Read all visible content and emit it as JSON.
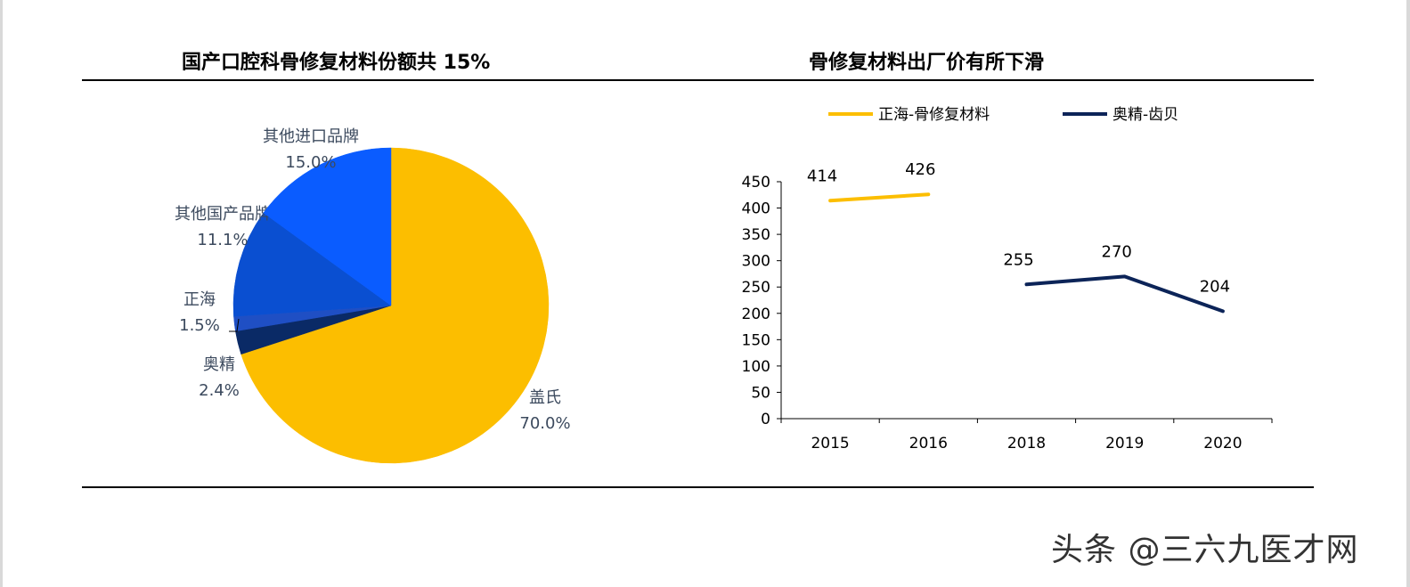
{
  "titles": {
    "left": "国产口腔科骨修复材料份额共 15%",
    "right": "骨修复材料出厂价有所下滑"
  },
  "watermark": "头条 @三六九医才网",
  "chart_data": [
    {
      "type": "pie",
      "title": "国产口腔科骨修复材料份额共 15%",
      "start_angle_deg": 0,
      "direction": "clockwise",
      "slices": [
        {
          "name": "盖氏",
          "value": 70.0,
          "label": "70.0%",
          "color": "#fcbe00"
        },
        {
          "name": "奥精",
          "value": 2.4,
          "label": "2.4%",
          "color": "#0a2a66"
        },
        {
          "name": "正海",
          "value": 1.5,
          "label": "1.5%",
          "color": "#1f4fc4"
        },
        {
          "name": "其他国产品牌",
          "value": 11.1,
          "label": "11.1%",
          "color": "#0a4fd1"
        },
        {
          "name": "其他进口品牌",
          "value": 15.0,
          "label": "15.0%",
          "color": "#0a5cff"
        }
      ]
    },
    {
      "type": "line",
      "title": "骨修复材料出厂价有所下滑",
      "categories": [
        "2015",
        "2016",
        "2018",
        "2019",
        "2020"
      ],
      "ylim": [
        0,
        450
      ],
      "yticks": [
        0,
        50,
        100,
        150,
        200,
        250,
        300,
        350,
        400,
        450
      ],
      "grid": false,
      "legend_position": "top",
      "series": [
        {
          "name": "正海-骨修复材料",
          "color": "#fcbe00",
          "values": [
            414,
            426,
            null,
            null,
            null
          ]
        },
        {
          "name": "奥精-齿贝",
          "color": "#0c2458",
          "values": [
            null,
            null,
            255,
            270,
            204
          ]
        }
      ]
    }
  ]
}
